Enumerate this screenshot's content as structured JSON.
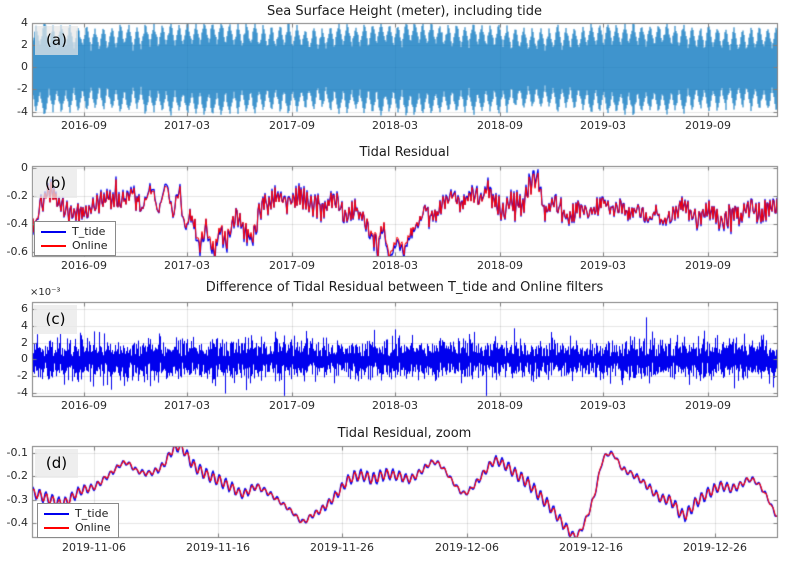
{
  "chart_data": [
    {
      "panel": "a",
      "type": "line",
      "title": "Sea Surface Height (meter), including tide",
      "corner_label": "(a)",
      "ylim": [
        -4.4,
        4.0
      ],
      "y_ticks": {
        "values": [
          4,
          2,
          0,
          -2,
          -4
        ],
        "labels": [
          "4",
          "2",
          "0",
          "-2",
          "-4"
        ]
      },
      "x_start_date": "2016-06-01",
      "xlim_days": [
        0,
        1308
      ],
      "x_ticks": {
        "days": [
          92,
          273,
          457,
          638,
          822,
          1003,
          1187
        ],
        "labels": [
          "2016-09",
          "2017-03",
          "2017-09",
          "2018-03",
          "2018-09",
          "2019-03",
          "2019-09"
        ]
      },
      "grid": true,
      "series": [
        {
          "name": "sea_surface_height",
          "color": "#0072BD",
          "style": "filled-envelope",
          "beat_period_days": 14.765,
          "amp_min": 1.9,
          "amp_max": 4.0,
          "seasonal_amp": 0.22,
          "noise_amp": 0.3,
          "seed": 11
        }
      ]
    },
    {
      "panel": "b",
      "type": "line",
      "title": "Tidal Residual",
      "corner_label": "(b)",
      "ylim": [
        -0.632,
        0.018
      ],
      "y_ticks": {
        "values": [
          0,
          -0.2,
          -0.4,
          -0.6
        ],
        "labels": [
          "0",
          "-0.2",
          "-0.4",
          "-0.6"
        ]
      },
      "x_start_date": "2016-06-01",
      "xlim_days": [
        0,
        1308
      ],
      "x_ticks": {
        "days": [
          92,
          273,
          457,
          638,
          822,
          1003,
          1187
        ],
        "labels": [
          "2016-09",
          "2017-03",
          "2017-09",
          "2018-03",
          "2018-09",
          "2019-03",
          "2019-09"
        ]
      },
      "grid": true,
      "legend": {
        "position": "bottom-left",
        "items": [
          {
            "label": "T_tide",
            "color": "#0000EE"
          },
          {
            "label": "Online",
            "color": "#FF0000"
          }
        ]
      },
      "series": [
        {
          "name": "T_tide",
          "color": "#0000EE",
          "seed": 23
        },
        {
          "name": "Online",
          "color": "#FF0000",
          "seed": 23
        }
      ],
      "noise_amp": 0.07,
      "spike_prob": 0.013,
      "keypoints_day_value": [
        [
          0,
          -0.44
        ],
        [
          18,
          -0.25
        ],
        [
          35,
          -0.18
        ],
        [
          55,
          -0.28
        ],
        [
          75,
          -0.33
        ],
        [
          95,
          -0.3
        ],
        [
          115,
          -0.25
        ],
        [
          135,
          -0.22
        ],
        [
          155,
          -0.25
        ],
        [
          175,
          -0.18
        ],
        [
          195,
          -0.28
        ],
        [
          210,
          -0.14
        ],
        [
          222,
          -0.3
        ],
        [
          235,
          -0.12
        ],
        [
          248,
          -0.32
        ],
        [
          258,
          -0.15
        ],
        [
          268,
          -0.4
        ],
        [
          280,
          -0.35
        ],
        [
          295,
          -0.55
        ],
        [
          305,
          -0.42
        ],
        [
          318,
          -0.58
        ],
        [
          330,
          -0.45
        ],
        [
          342,
          -0.53
        ],
        [
          355,
          -0.36
        ],
        [
          370,
          -0.42
        ],
        [
          385,
          -0.48
        ],
        [
          400,
          -0.32
        ],
        [
          415,
          -0.27
        ],
        [
          430,
          -0.2
        ],
        [
          450,
          -0.24
        ],
        [
          470,
          -0.2
        ],
        [
          490,
          -0.26
        ],
        [
          510,
          -0.29
        ],
        [
          530,
          -0.22
        ],
        [
          550,
          -0.33
        ],
        [
          570,
          -0.3
        ],
        [
          590,
          -0.42
        ],
        [
          605,
          -0.52
        ],
        [
          618,
          -0.45
        ],
        [
          628,
          -0.62
        ],
        [
          640,
          -0.5
        ],
        [
          652,
          -0.58
        ],
        [
          665,
          -0.45
        ],
        [
          680,
          -0.38
        ],
        [
          695,
          -0.3
        ],
        [
          710,
          -0.34
        ],
        [
          725,
          -0.24
        ],
        [
          740,
          -0.19
        ],
        [
          755,
          -0.26
        ],
        [
          770,
          -0.17
        ],
        [
          785,
          -0.23
        ],
        [
          800,
          -0.15
        ],
        [
          815,
          -0.26
        ],
        [
          830,
          -0.31
        ],
        [
          845,
          -0.22
        ],
        [
          860,
          -0.28
        ],
        [
          875,
          -0.12
        ],
        [
          888,
          -0.1
        ],
        [
          900,
          -0.3
        ],
        [
          915,
          -0.24
        ],
        [
          930,
          -0.31
        ],
        [
          945,
          -0.36
        ],
        [
          960,
          -0.27
        ],
        [
          975,
          -0.33
        ],
        [
          990,
          -0.29
        ],
        [
          1005,
          -0.24
        ],
        [
          1020,
          -0.31
        ],
        [
          1035,
          -0.26
        ],
        [
          1050,
          -0.33
        ],
        [
          1065,
          -0.29
        ],
        [
          1080,
          -0.36
        ],
        [
          1095,
          -0.31
        ],
        [
          1110,
          -0.38
        ],
        [
          1125,
          -0.33
        ],
        [
          1140,
          -0.27
        ],
        [
          1155,
          -0.31
        ],
        [
          1170,
          -0.36
        ],
        [
          1185,
          -0.29
        ],
        [
          1200,
          -0.33
        ],
        [
          1215,
          -0.38
        ],
        [
          1230,
          -0.31
        ],
        [
          1245,
          -0.35
        ],
        [
          1260,
          -0.28
        ],
        [
          1275,
          -0.33
        ],
        [
          1290,
          -0.3
        ],
        [
          1308,
          -0.27
        ]
      ]
    },
    {
      "panel": "c",
      "type": "line",
      "title": "Difference of Tidal Residual between T_tide and Online filters",
      "corner_label": "(c)",
      "y_axis_offset_label": "×10⁻³",
      "ylim": [
        -0.0044,
        0.0069
      ],
      "y_ticks": {
        "values": [
          0.006,
          0.004,
          0.002,
          0,
          -0.002,
          -0.004
        ],
        "labels": [
          "6",
          "4",
          "2",
          "0",
          "-2",
          "-4"
        ]
      },
      "x_start_date": "2016-06-01",
      "xlim_days": [
        0,
        1308
      ],
      "x_ticks": {
        "days": [
          92,
          273,
          457,
          638,
          822,
          1003,
          1187
        ],
        "labels": [
          "2016-09",
          "2017-03",
          "2017-09",
          "2018-03",
          "2018-09",
          "2019-03",
          "2019-09"
        ]
      },
      "grid": true,
      "series": [
        {
          "name": "difference",
          "color": "#0000EE",
          "style": "noise-band",
          "noise_std": 0.0011,
          "spike_prob": 0.016,
          "spike_max": 0.0065,
          "seed": 37
        }
      ]
    },
    {
      "panel": "d",
      "type": "line",
      "title": "Tidal Residual, zoom",
      "corner_label": "(d)",
      "ylim": [
        -0.462,
        -0.068
      ],
      "y_ticks": {
        "values": [
          -0.1,
          -0.2,
          -0.3,
          -0.4
        ],
        "labels": [
          "-0.1",
          "-0.2",
          "-0.3",
          "-0.4"
        ]
      },
      "x_start_date": "2019-11-01",
      "xlim_days": [
        0,
        60
      ],
      "x_ticks": {
        "days": [
          5,
          15,
          25,
          35,
          45,
          55
        ],
        "labels": [
          "2019-11-06",
          "2019-11-16",
          "2019-11-26",
          "2019-12-06",
          "2019-12-16",
          "2019-12-26"
        ]
      },
      "grid": true,
      "legend": {
        "position": "bottom-left",
        "items": [
          {
            "label": "T_tide",
            "color": "#0000EE"
          },
          {
            "label": "Online",
            "color": "#FF0000"
          }
        ]
      },
      "series": [
        {
          "name": "T_tide",
          "color": "#0000EE",
          "seed": 51
        },
        {
          "name": "Online",
          "color": "#FF0000",
          "seed": 51
        }
      ],
      "ripple": {
        "period_days": 0.5175,
        "amp": 0.013
      },
      "keypoints_day_value": [
        [
          0,
          -0.27
        ],
        [
          1.5,
          -0.3
        ],
        [
          2.5,
          -0.315
        ],
        [
          4,
          -0.26
        ],
        [
          5,
          -0.245
        ],
        [
          6.5,
          -0.18
        ],
        [
          7.5,
          -0.14
        ],
        [
          8.5,
          -0.175
        ],
        [
          9.5,
          -0.185
        ],
        [
          10.5,
          -0.155
        ],
        [
          11.3,
          -0.09
        ],
        [
          12,
          -0.075
        ],
        [
          13,
          -0.15
        ],
        [
          14,
          -0.19
        ],
        [
          15,
          -0.215
        ],
        [
          16,
          -0.245
        ],
        [
          17,
          -0.275
        ],
        [
          18,
          -0.245
        ],
        [
          19,
          -0.27
        ],
        [
          20,
          -0.31
        ],
        [
          21,
          -0.355
        ],
        [
          21.8,
          -0.395
        ],
        [
          22.5,
          -0.37
        ],
        [
          23.5,
          -0.335
        ],
        [
          24.5,
          -0.28
        ],
        [
          25.5,
          -0.215
        ],
        [
          26.5,
          -0.195
        ],
        [
          27.5,
          -0.21
        ],
        [
          28.5,
          -0.19
        ],
        [
          29.5,
          -0.198
        ],
        [
          30.5,
          -0.21
        ],
        [
          31.5,
          -0.17
        ],
        [
          32.3,
          -0.138
        ],
        [
          33,
          -0.158
        ],
        [
          34,
          -0.23
        ],
        [
          34.8,
          -0.272
        ],
        [
          35.5,
          -0.245
        ],
        [
          36.5,
          -0.178
        ],
        [
          37.3,
          -0.132
        ],
        [
          38,
          -0.148
        ],
        [
          39,
          -0.19
        ],
        [
          40,
          -0.232
        ],
        [
          41,
          -0.29
        ],
        [
          42,
          -0.35
        ],
        [
          43,
          -0.42
        ],
        [
          43.8,
          -0.458
        ],
        [
          44.5,
          -0.4
        ],
        [
          45.3,
          -0.28
        ],
        [
          46,
          -0.125
        ],
        [
          46.8,
          -0.105
        ],
        [
          47.5,
          -0.163
        ],
        [
          48.5,
          -0.195
        ],
        [
          49.5,
          -0.238
        ],
        [
          50.5,
          -0.29
        ],
        [
          51.5,
          -0.308
        ],
        [
          52.5,
          -0.368
        ],
        [
          53.5,
          -0.312
        ],
        [
          54.5,
          -0.272
        ],
        [
          55.5,
          -0.242
        ],
        [
          56.3,
          -0.252
        ],
        [
          57,
          -0.238
        ],
        [
          57.8,
          -0.212
        ],
        [
          58.5,
          -0.233
        ],
        [
          59.2,
          -0.29
        ],
        [
          60,
          -0.37
        ]
      ]
    }
  ]
}
